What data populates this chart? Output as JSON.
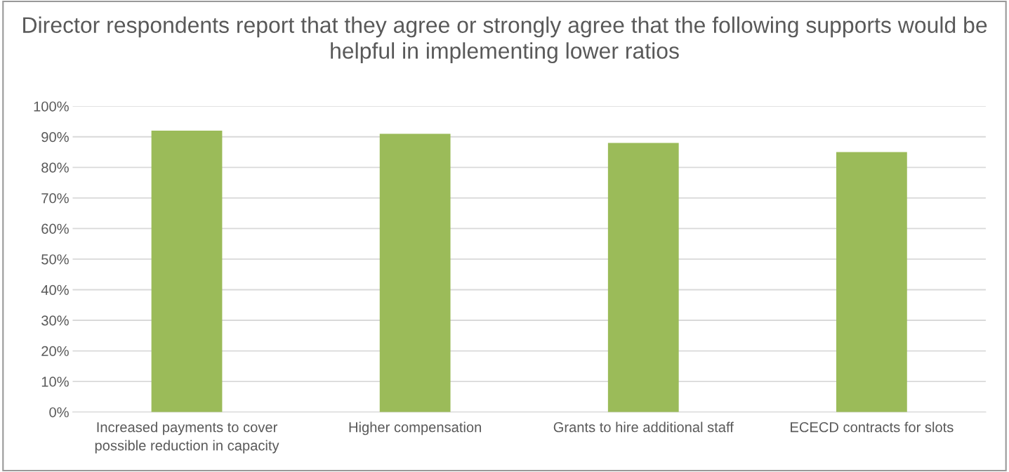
{
  "chart_data": {
    "type": "bar",
    "title": "Director respondents report that they agree or strongly agree that the following supports would be helpful in implementing lower ratios",
    "categories": [
      "Increased payments to cover\npossible reduction in capacity",
      "Higher compensation",
      "Grants to hire additional staff",
      "ECECD contracts for slots"
    ],
    "values": [
      92,
      91,
      88,
      85
    ],
    "color": "#9bbb59",
    "ylim": [
      0,
      100
    ],
    "yticks": [
      {
        "value": 0,
        "label": "0%"
      },
      {
        "value": 10,
        "label": "10%"
      },
      {
        "value": 20,
        "label": "20%"
      },
      {
        "value": 30,
        "label": "30%"
      },
      {
        "value": 40,
        "label": "40%"
      },
      {
        "value": 50,
        "label": "50%"
      },
      {
        "value": 60,
        "label": "60%"
      },
      {
        "value": 70,
        "label": "70%"
      },
      {
        "value": 80,
        "label": "80%"
      },
      {
        "value": 90,
        "label": "90%"
      },
      {
        "value": 100,
        "label": "100%"
      }
    ],
    "grid": "y"
  }
}
